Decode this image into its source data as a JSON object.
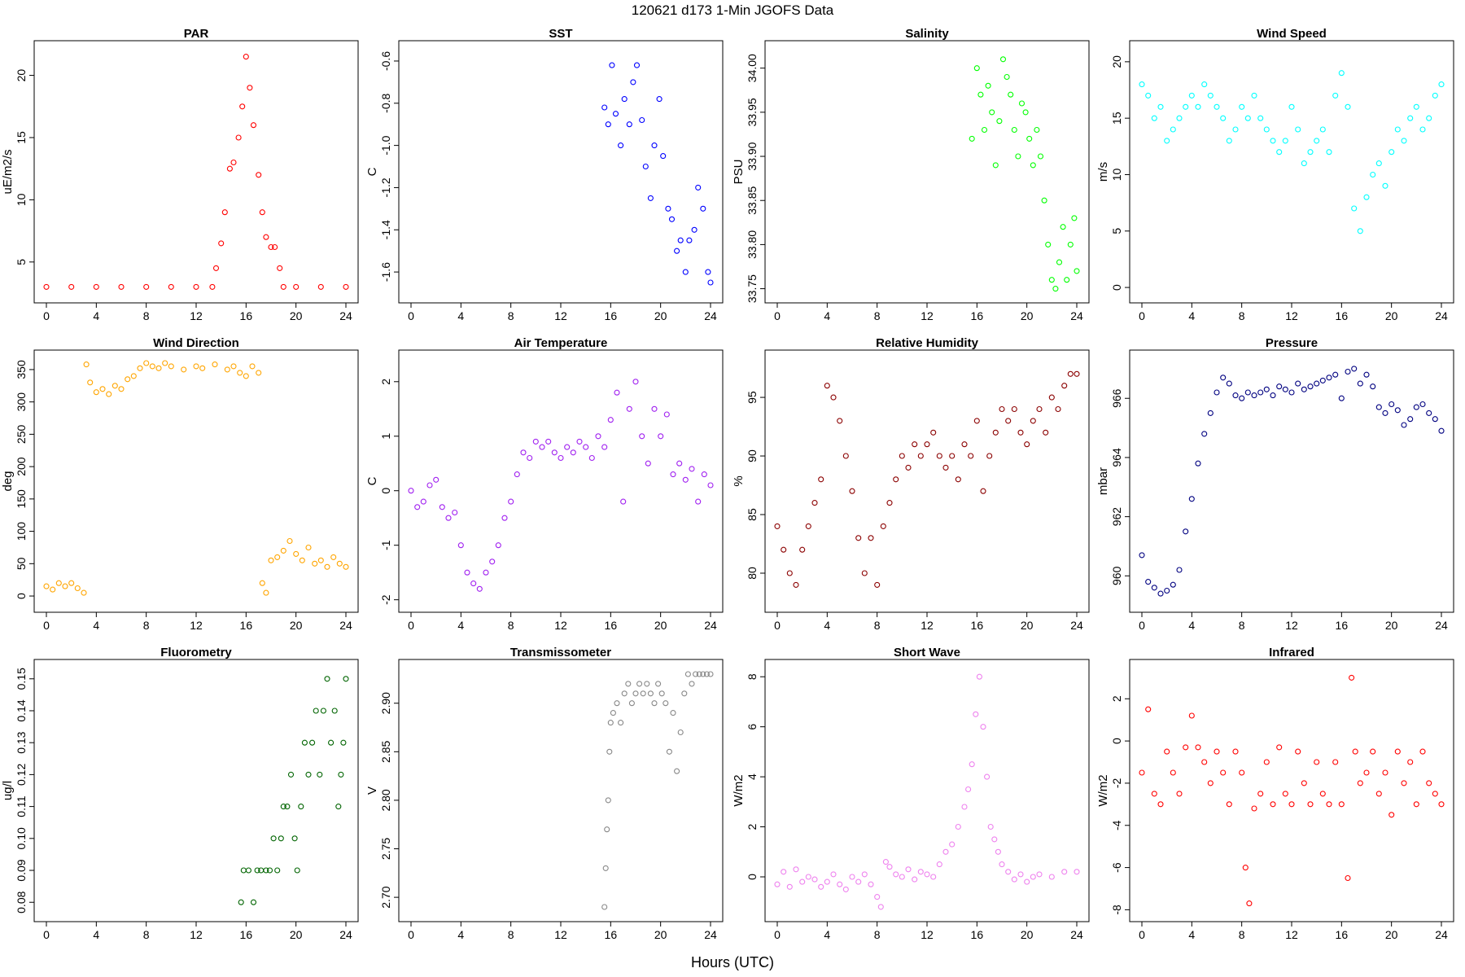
{
  "suptitle": "120621   d173   1-Min  JGOFS Data",
  "xlabel": "Hours (UTC)",
  "chart_data": [
    {
      "type": "scatter",
      "title": "PAR",
      "ylabel": "uE/m2/s",
      "color": "#ff0000",
      "xlim": [
        0,
        24
      ],
      "ylim": [
        2.5,
        22
      ],
      "xticks": [
        0,
        4,
        8,
        12,
        16,
        20,
        24
      ],
      "yticks": [
        5,
        10,
        15,
        20
      ],
      "ytick_labels": [
        "5",
        "10",
        "15",
        "20"
      ],
      "x": [
        0,
        2,
        4,
        6,
        8,
        10,
        12,
        13.3,
        13.6,
        14.0,
        14.3,
        14.7,
        15.0,
        15.4,
        15.7,
        16.0,
        16.3,
        16.6,
        17.0,
        17.3,
        17.6,
        18.0,
        18.3,
        18.7,
        19.0,
        20,
        22,
        24
      ],
      "y": [
        3,
        3,
        3,
        3,
        3,
        3,
        3,
        3,
        4.5,
        6.5,
        9,
        12.5,
        13,
        15,
        17.5,
        21.5,
        19,
        16,
        12,
        9,
        7,
        6.2,
        6.2,
        4.5,
        3,
        3,
        3,
        3
      ]
    },
    {
      "type": "scatter",
      "title": "SST",
      "ylabel": "C",
      "color": "#0000ff",
      "xlim": [
        0,
        24
      ],
      "ylim": [
        -1.7,
        -0.55
      ],
      "xticks": [
        0,
        4,
        8,
        12,
        16,
        20,
        24
      ],
      "yticks": [
        -0.6,
        -0.8,
        -1.0,
        -1.2,
        -1.4,
        -1.6
      ],
      "ytick_labels": [
        "-0.6",
        "-0.8",
        "-1.0",
        "-1.2",
        "-1.4",
        "-1.6"
      ],
      "x": [
        15.5,
        15.8,
        16.1,
        16.4,
        16.8,
        17.1,
        17.5,
        17.8,
        18.1,
        18.5,
        18.8,
        19.2,
        19.5,
        19.9,
        20.2,
        20.6,
        20.9,
        21.3,
        21.6,
        22.0,
        22.3,
        22.7,
        23.0,
        23.4,
        23.8,
        24.0
      ],
      "y": [
        -0.82,
        -0.9,
        -0.62,
        -0.85,
        -1.0,
        -0.78,
        -0.9,
        -0.7,
        -0.62,
        -0.88,
        -1.1,
        -1.25,
        -1.0,
        -0.78,
        -1.05,
        -1.3,
        -1.35,
        -1.5,
        -1.45,
        -1.6,
        -1.45,
        -1.4,
        -1.2,
        -1.3,
        -1.6,
        -1.65
      ]
    },
    {
      "type": "scatter",
      "title": "Salinity",
      "ylabel": "PSU",
      "color": "#00ff00",
      "xlim": [
        0,
        24
      ],
      "ylim": [
        33.745,
        34.02
      ],
      "xticks": [
        0,
        4,
        8,
        12,
        16,
        20,
        24
      ],
      "yticks": [
        33.75,
        33.8,
        33.85,
        33.9,
        33.95,
        34.0
      ],
      "ytick_labels": [
        "33.75",
        "33.80",
        "33.85",
        "33.90",
        "33.95",
        "34.00"
      ],
      "x": [
        15.6,
        16.0,
        16.3,
        16.6,
        16.9,
        17.2,
        17.5,
        17.8,
        18.1,
        18.4,
        18.7,
        19.0,
        19.3,
        19.6,
        19.9,
        20.2,
        20.5,
        20.8,
        21.1,
        21.4,
        21.7,
        22.0,
        22.3,
        22.6,
        22.9,
        23.2,
        23.5,
        23.8,
        24.0
      ],
      "y": [
        33.92,
        34.0,
        33.97,
        33.93,
        33.98,
        33.95,
        33.89,
        33.94,
        34.01,
        33.99,
        33.97,
        33.93,
        33.9,
        33.96,
        33.95,
        33.92,
        33.89,
        33.93,
        33.9,
        33.85,
        33.8,
        33.76,
        33.75,
        33.78,
        33.82,
        33.76,
        33.8,
        33.83,
        33.77
      ]
    },
    {
      "type": "scatter",
      "title": "Wind Speed",
      "ylabel": "m/s",
      "color": "#00ffff",
      "xlim": [
        0,
        24
      ],
      "ylim": [
        -0.5,
        21
      ],
      "xticks": [
        0,
        4,
        8,
        12,
        16,
        20,
        24
      ],
      "yticks": [
        0,
        5,
        10,
        15,
        20
      ],
      "ytick_labels": [
        "0",
        "5",
        "10",
        "15",
        "20"
      ],
      "x": [
        0,
        0.5,
        1,
        1.5,
        2,
        2.5,
        3,
        3.5,
        4,
        4.5,
        5,
        5.5,
        6,
        6.5,
        7,
        7.5,
        8,
        8.5,
        9,
        9.5,
        10,
        10.5,
        11,
        11.5,
        12,
        12.5,
        13,
        13.5,
        14,
        14.5,
        15,
        15.5,
        16,
        16.5,
        17,
        17.5,
        18,
        18.5,
        19,
        19.5,
        20,
        20.5,
        21,
        21.5,
        22,
        22.5,
        23,
        23.5,
        24
      ],
      "y": [
        18,
        17,
        15,
        16,
        13,
        14,
        15,
        16,
        17,
        16,
        18,
        17,
        16,
        15,
        13,
        14,
        16,
        15,
        17,
        15,
        14,
        13,
        12,
        13,
        16,
        14,
        11,
        12,
        13,
        14,
        12,
        17,
        19,
        16,
        7,
        5,
        8,
        10,
        11,
        9,
        12,
        14,
        13,
        15,
        16,
        14,
        15,
        17,
        18
      ]
    },
    {
      "type": "scatter",
      "title": "Wind Direction",
      "ylabel": "deg",
      "color": "#ffa500",
      "xlim": [
        0,
        24
      ],
      "ylim": [
        -10,
        365
      ],
      "xticks": [
        0,
        4,
        8,
        12,
        16,
        20,
        24
      ],
      "yticks": [
        0,
        50,
        100,
        150,
        200,
        250,
        300,
        350
      ],
      "ytick_labels": [
        "0",
        "50",
        "100",
        "150",
        "200",
        "250",
        "300",
        "350"
      ],
      "x": [
        0,
        0.5,
        1,
        1.5,
        2,
        2.5,
        3,
        3.2,
        3.5,
        4,
        4.5,
        5,
        5.5,
        6,
        6.5,
        7,
        7.5,
        8,
        8.5,
        9,
        9.5,
        10,
        11,
        12,
        12.5,
        13.5,
        14.5,
        15,
        15.5,
        16,
        16.5,
        17,
        17.3,
        17.6,
        18,
        18.5,
        19,
        19.5,
        20,
        20.5,
        21,
        21.5,
        22,
        22.5,
        23,
        23.5,
        24
      ],
      "y": [
        15,
        10,
        20,
        15,
        20,
        12,
        5,
        358,
        330,
        315,
        320,
        312,
        325,
        320,
        335,
        340,
        352,
        360,
        355,
        352,
        360,
        355,
        350,
        355,
        352,
        358,
        350,
        355,
        345,
        340,
        355,
        345,
        20,
        5,
        55,
        60,
        70,
        85,
        65,
        55,
        75,
        50,
        55,
        45,
        60,
        50,
        45
      ]
    },
    {
      "type": "scatter",
      "title": "Air Temperature",
      "ylabel": "C",
      "color": "#a020f0",
      "xlim": [
        0,
        24
      ],
      "ylim": [
        -2.05,
        2.4
      ],
      "xticks": [
        0,
        4,
        8,
        12,
        16,
        20,
        24
      ],
      "yticks": [
        -2,
        -1,
        0,
        1,
        2
      ],
      "ytick_labels": [
        "-2",
        "-1",
        "0",
        "1",
        "2"
      ],
      "x": [
        0,
        0.5,
        1,
        1.5,
        2,
        2.5,
        3,
        3.5,
        4,
        4.5,
        5,
        5.5,
        6,
        6.5,
        7,
        7.5,
        8,
        8.5,
        9,
        9.5,
        10,
        10.5,
        11,
        11.5,
        12,
        12.5,
        13,
        13.5,
        14,
        14.5,
        15,
        15.5,
        16,
        16.5,
        17,
        17.5,
        18,
        18.5,
        19,
        19.5,
        20,
        20.5,
        21,
        21.5,
        22,
        22.5,
        23,
        23.5,
        24
      ],
      "y": [
        0,
        -0.3,
        -0.2,
        0.1,
        0.2,
        -0.3,
        -0.5,
        -0.4,
        -1.0,
        -1.5,
        -1.7,
        -1.8,
        -1.5,
        -1.3,
        -1.0,
        -0.5,
        -0.2,
        0.3,
        0.7,
        0.6,
        0.9,
        0.8,
        0.9,
        0.7,
        0.6,
        0.8,
        0.7,
        0.9,
        0.8,
        0.6,
        1.0,
        0.8,
        1.3,
        1.8,
        -0.2,
        1.5,
        2.0,
        1.0,
        0.5,
        1.5,
        1.0,
        1.4,
        0.3,
        0.5,
        0.2,
        0.4,
        -0.2,
        0.3,
        0.1
      ]
    },
    {
      "type": "scatter",
      "title": "Relative Humidity",
      "ylabel": "%",
      "color": "#8b0000",
      "xlim": [
        0,
        24
      ],
      "ylim": [
        77.5,
        98.2
      ],
      "xticks": [
        0,
        4,
        8,
        12,
        16,
        20,
        24
      ],
      "yticks": [
        80,
        85,
        90,
        95
      ],
      "ytick_labels": [
        "80",
        "85",
        "90",
        "95"
      ],
      "x": [
        0,
        0.5,
        1,
        1.5,
        2,
        2.5,
        3,
        3.5,
        4,
        4.5,
        5,
        5.5,
        6,
        6.5,
        7,
        7.5,
        8,
        8.5,
        9,
        9.5,
        10,
        10.5,
        11,
        11.5,
        12,
        12.5,
        13,
        13.5,
        14,
        14.5,
        15,
        15.5,
        16,
        16.5,
        17,
        17.5,
        18,
        18.5,
        19,
        19.5,
        20,
        20.5,
        21,
        21.5,
        22,
        22.5,
        23,
        23.5,
        24
      ],
      "y": [
        84,
        82,
        80,
        79,
        82,
        84,
        86,
        88,
        96,
        95,
        93,
        90,
        87,
        83,
        80,
        83,
        79,
        84,
        86,
        88,
        90,
        89,
        91,
        90,
        91,
        92,
        90,
        89,
        90,
        88,
        91,
        90,
        93,
        87,
        90,
        92,
        94,
        93,
        94,
        92,
        91,
        93,
        94,
        92,
        95,
        94,
        96,
        97,
        97
      ]
    },
    {
      "type": "scatter",
      "title": "Pressure",
      "ylabel": "mbar",
      "color": "#000080",
      "xlim": [
        0,
        24
      ],
      "ylim": [
        959.1,
        967.3
      ],
      "xticks": [
        0,
        4,
        8,
        12,
        16,
        20,
        24
      ],
      "yticks": [
        960,
        962,
        964,
        966
      ],
      "ytick_labels": [
        "960",
        "962",
        "964",
        "966"
      ],
      "x": [
        0,
        0.5,
        1,
        1.5,
        2,
        2.5,
        3,
        3.5,
        4,
        4.5,
        5,
        5.5,
        6,
        6.5,
        7,
        7.5,
        8,
        8.5,
        9,
        9.5,
        10,
        10.5,
        11,
        11.5,
        12,
        12.5,
        13,
        13.5,
        14,
        14.5,
        15,
        15.5,
        16,
        16.5,
        17,
        17.5,
        18,
        18.5,
        19,
        19.5,
        20,
        20.5,
        21,
        21.5,
        22,
        22.5,
        23,
        23.5,
        24
      ],
      "y": [
        960.7,
        959.8,
        959.6,
        959.4,
        959.5,
        959.7,
        960.2,
        961.5,
        962.6,
        963.8,
        964.8,
        965.5,
        966.2,
        966.7,
        966.5,
        966.1,
        966.0,
        966.2,
        966.1,
        966.2,
        966.3,
        966.1,
        966.4,
        966.3,
        966.2,
        966.5,
        966.3,
        966.4,
        966.5,
        966.6,
        966.7,
        966.8,
        966.0,
        966.9,
        967.0,
        966.5,
        966.8,
        966.4,
        965.7,
        965.5,
        965.8,
        965.6,
        965.1,
        965.3,
        965.7,
        965.8,
        965.5,
        965.3,
        964.9
      ]
    },
    {
      "type": "scatter",
      "title": "Fluorometry",
      "ylabel": "ug/l",
      "color": "#006400",
      "xlim": [
        0,
        24
      ],
      "ylim": [
        0.077,
        0.153
      ],
      "xticks": [
        0,
        4,
        8,
        12,
        16,
        20,
        24
      ],
      "yticks": [
        0.08,
        0.09,
        0.1,
        0.11,
        0.12,
        0.13,
        0.14,
        0.15
      ],
      "ytick_labels": [
        "0.08",
        "0.09",
        "0.10",
        "0.11",
        "0.12",
        "0.13",
        "0.14",
        "0.15"
      ],
      "x": [
        15.6,
        15.8,
        16.2,
        16.6,
        16.9,
        17.2,
        17.6,
        17.9,
        18.2,
        18.5,
        18.8,
        19.0,
        19.3,
        19.6,
        19.9,
        20.1,
        20.4,
        20.7,
        21.0,
        21.3,
        21.6,
        21.9,
        22.2,
        22.5,
        22.8,
        23.1,
        23.4,
        23.6,
        23.8,
        24.0
      ],
      "y": [
        0.08,
        0.09,
        0.09,
        0.08,
        0.09,
        0.09,
        0.09,
        0.09,
        0.1,
        0.09,
        0.1,
        0.11,
        0.11,
        0.12,
        0.1,
        0.09,
        0.11,
        0.13,
        0.12,
        0.13,
        0.14,
        0.12,
        0.14,
        0.15,
        0.13,
        0.14,
        0.11,
        0.12,
        0.13,
        0.15
      ]
    },
    {
      "type": "scatter",
      "title": "Transmissometer",
      "ylabel": "V",
      "color": "#888888",
      "xlim": [
        0,
        24
      ],
      "ylim": [
        2.685,
        2.935
      ],
      "xticks": [
        0,
        4,
        8,
        12,
        16,
        20,
        24
      ],
      "yticks": [
        2.7,
        2.75,
        2.8,
        2.85,
        2.9
      ],
      "ytick_labels": [
        "2.70",
        "2.75",
        "2.80",
        "2.85",
        "2.90"
      ],
      "x": [
        15.5,
        15.6,
        15.7,
        15.8,
        15.9,
        16.0,
        16.2,
        16.5,
        16.8,
        17.1,
        17.4,
        17.7,
        18.0,
        18.3,
        18.6,
        18.9,
        19.2,
        19.5,
        19.8,
        20.1,
        20.4,
        20.7,
        21.0,
        21.3,
        21.6,
        21.9,
        22.2,
        22.5,
        22.8,
        23.1,
        23.4,
        23.7,
        24.0
      ],
      "y": [
        2.69,
        2.73,
        2.77,
        2.8,
        2.85,
        2.88,
        2.89,
        2.9,
        2.88,
        2.91,
        2.92,
        2.9,
        2.91,
        2.92,
        2.91,
        2.92,
        2.91,
        2.9,
        2.92,
        2.91,
        2.9,
        2.85,
        2.89,
        2.83,
        2.87,
        2.91,
        2.93,
        2.92,
        2.93,
        2.93,
        2.93,
        2.93,
        2.93
      ]
    },
    {
      "type": "scatter",
      "title": "Short Wave",
      "ylabel": "W/m2",
      "color": "#ee82ee",
      "xlim": [
        0,
        24
      ],
      "ylim": [
        -1.4,
        8.3
      ],
      "xticks": [
        0,
        4,
        8,
        12,
        16,
        20,
        24
      ],
      "yticks": [
        0,
        2,
        4,
        6,
        8
      ],
      "ytick_labels": [
        "0",
        "2",
        "4",
        "6",
        "8"
      ],
      "x": [
        0,
        0.5,
        1,
        1.5,
        2,
        2.5,
        3,
        3.5,
        4,
        4.5,
        5,
        5.5,
        6,
        6.5,
        7,
        7.5,
        8,
        8.3,
        8.7,
        9,
        9.5,
        10,
        10.5,
        11,
        11.5,
        12,
        12.5,
        13,
        13.5,
        14,
        14.5,
        15,
        15.3,
        15.6,
        15.9,
        16.2,
        16.5,
        16.8,
        17.1,
        17.4,
        17.7,
        18,
        18.5,
        19,
        19.5,
        20,
        20.5,
        21,
        22,
        23,
        24
      ],
      "y": [
        -0.3,
        0.2,
        -0.4,
        0.3,
        -0.2,
        0.0,
        -0.1,
        -0.4,
        -0.2,
        0.1,
        -0.3,
        -0.5,
        0.0,
        -0.2,
        0.1,
        -0.3,
        -0.8,
        -1.2,
        0.6,
        0.4,
        0.1,
        0.0,
        0.3,
        -0.1,
        0.2,
        0.1,
        0.0,
        0.5,
        1.0,
        1.3,
        2.0,
        2.8,
        3.5,
        4.5,
        6.5,
        8.0,
        6.0,
        4.0,
        2.0,
        1.5,
        1.0,
        0.5,
        0.2,
        -0.1,
        0.1,
        -0.2,
        0.0,
        0.1,
        0.0,
        0.2,
        0.2
      ]
    },
    {
      "type": "scatter",
      "title": "Infrared",
      "ylabel": "W/m2",
      "color": "#ff0000",
      "xlim": [
        0,
        24
      ],
      "ylim": [
        -8.1,
        3.4
      ],
      "xticks": [
        0,
        4,
        8,
        12,
        16,
        20,
        24
      ],
      "yticks": [
        2,
        0,
        -2,
        -4,
        -6,
        -8
      ],
      "ytick_labels": [
        "2",
        "0",
        "-2",
        "-4",
        "-6",
        "-8"
      ],
      "x": [
        0,
        0.5,
        1,
        1.5,
        2,
        2.5,
        3,
        3.5,
        4,
        4.5,
        5,
        5.5,
        6,
        6.5,
        7,
        7.5,
        8,
        8.3,
        8.6,
        9,
        9.5,
        10,
        10.5,
        11,
        11.5,
        12,
        12.5,
        13,
        13.5,
        14,
        14.5,
        15,
        15.5,
        16,
        16.5,
        16.8,
        17.1,
        17.5,
        18,
        18.5,
        19,
        19.5,
        20,
        20.5,
        21,
        21.5,
        22,
        22.5,
        23,
        23.5,
        24
      ],
      "y": [
        -1.5,
        1.5,
        -2.5,
        -3.0,
        -0.5,
        -1.5,
        -2.5,
        -0.3,
        1.2,
        -0.3,
        -1.0,
        -2.0,
        -0.5,
        -1.5,
        -3.0,
        -0.5,
        -1.5,
        -6.0,
        -7.7,
        -3.2,
        -2.5,
        -1.0,
        -3.0,
        -0.3,
        -2.5,
        -3.0,
        -0.5,
        -2.0,
        -3.0,
        -1.0,
        -2.5,
        -3.0,
        -1.0,
        -3.0,
        -6.5,
        3.0,
        -0.5,
        -2.0,
        -1.5,
        -0.5,
        -2.5,
        -1.5,
        -3.5,
        -0.5,
        -2.0,
        -1.0,
        -3.0,
        -0.5,
        -2.0,
        -2.5,
        -3.0
      ]
    }
  ]
}
